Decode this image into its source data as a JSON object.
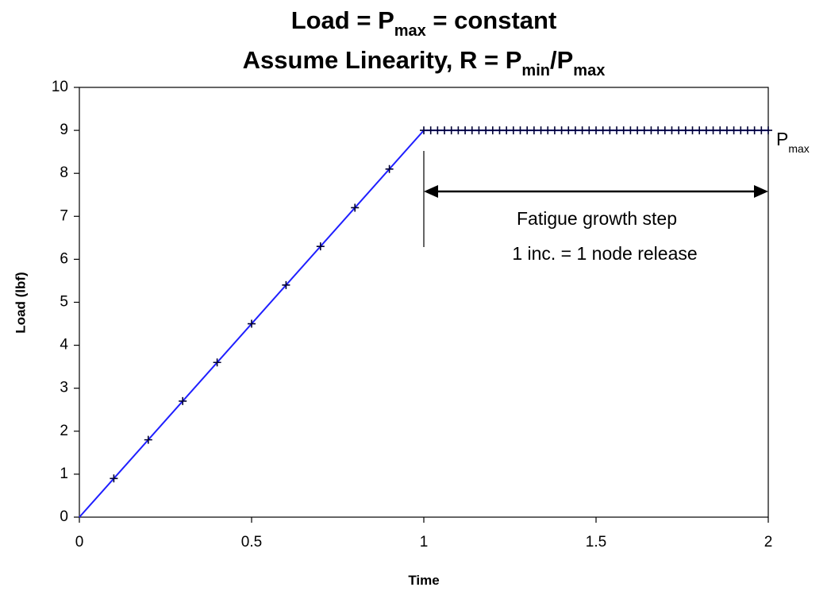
{
  "chart_data": {
    "type": "line",
    "title_lines": [
      [
        "Load = P",
        "max",
        " = constant"
      ],
      [
        "Assume Linearity, R = P",
        "min",
        "/P",
        "max"
      ]
    ],
    "x_label": "Time",
    "y_label": "Load (lbf)",
    "annotations": {
      "step_line1": "Fatigue growth step",
      "step_line2": "1 inc. = 1 node release",
      "pmax": [
        "P",
        "max"
      ]
    },
    "xlim": [
      0,
      2
    ],
    "xticks": [
      0,
      0.5,
      1,
      1.5,
      2
    ],
    "ylim": [
      0,
      10
    ],
    "yticks": [
      0,
      1,
      2,
      3,
      4,
      5,
      6,
      7,
      8,
      9,
      10
    ],
    "series": [
      {
        "color": "#1f1fff",
        "marker": "none",
        "x": [
          0,
          1,
          2
        ],
        "values": [
          0,
          9,
          9
        ]
      },
      {
        "color": "#000033",
        "marker": "plus",
        "x": [
          0.1,
          0.2,
          0.3,
          0.4,
          0.5,
          0.6,
          0.7,
          0.8,
          0.9,
          1,
          1.02,
          1.04,
          1.06,
          1.08,
          1.1,
          1.12,
          1.14,
          1.16,
          1.18,
          1.2,
          1.22,
          1.24,
          1.26,
          1.28,
          1.3,
          1.32,
          1.34,
          1.36,
          1.38,
          1.4,
          1.42,
          1.44,
          1.46,
          1.48,
          1.5,
          1.52,
          1.54,
          1.56,
          1.58,
          1.6,
          1.62,
          1.64,
          1.66,
          1.68,
          1.7,
          1.72,
          1.74,
          1.76,
          1.78,
          1.8,
          1.82,
          1.84,
          1.86,
          1.88,
          1.9,
          1.92,
          1.94,
          1.96,
          1.98,
          2
        ],
        "values": [
          0.9,
          1.8,
          2.7,
          3.6,
          4.5,
          5.4,
          6.3,
          7.2,
          8.1,
          9,
          9,
          9,
          9,
          9,
          9,
          9,
          9,
          9,
          9,
          9,
          9,
          9,
          9,
          9,
          9,
          9,
          9,
          9,
          9,
          9,
          9,
          9,
          9,
          9,
          9,
          9,
          9,
          9,
          9,
          9,
          9,
          9,
          9,
          9,
          9,
          9,
          9,
          9,
          9,
          9,
          9,
          9,
          9,
          9,
          9,
          9,
          9,
          9,
          9,
          9
        ]
      }
    ]
  }
}
